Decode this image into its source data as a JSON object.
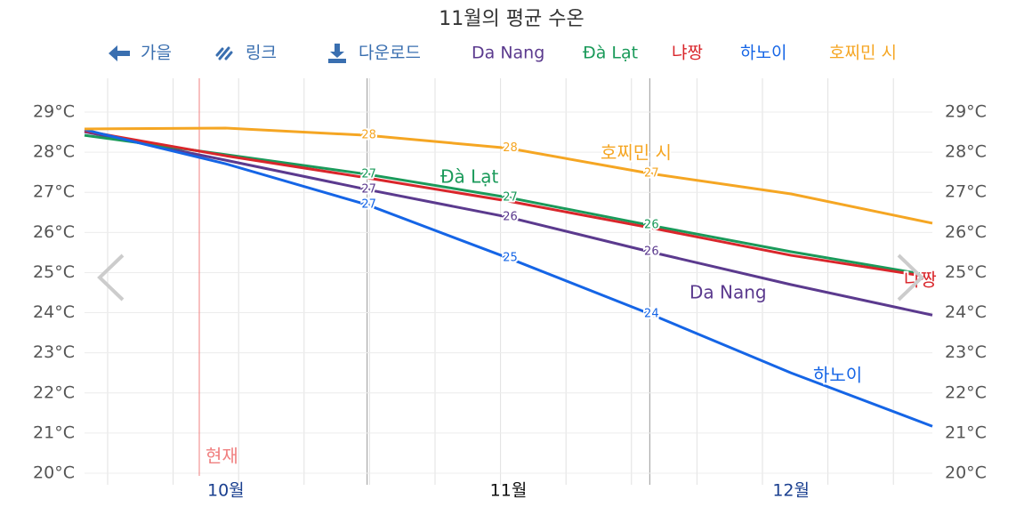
{
  "chart_data": {
    "type": "line",
    "title": "11월의 평균 수온",
    "toolbar": [
      "가을",
      "링크",
      "다운로드"
    ],
    "annotation": "현재",
    "categories": [
      null,
      "10월",
      null,
      "11월",
      null,
      "12월",
      null
    ],
    "series": [
      {
        "name": "Da Nang",
        "color": "#5b3a8e",
        "values": [
          28.51,
          27.8,
          27.07,
          26.38,
          25.52,
          24.7,
          23.94
        ],
        "value_labels": [
          null,
          null,
          "27",
          "26",
          "26",
          null,
          null
        ]
      },
      {
        "name": "Đà Lạt",
        "color": "#1a9a5a",
        "values": [
          28.42,
          27.94,
          27.45,
          26.87,
          26.18,
          25.52,
          24.92
        ],
        "value_labels": [
          null,
          null,
          "27",
          "27",
          "26",
          null,
          null
        ]
      },
      {
        "name": "냐짱",
        "color": "#d9262b",
        "values": [
          28.53,
          27.91,
          27.36,
          26.78,
          26.12,
          25.43,
          24.88
        ]
      },
      {
        "name": "하노이",
        "color": "#1565e6",
        "values": [
          28.56,
          27.71,
          26.69,
          25.36,
          23.97,
          22.5,
          21.17
        ],
        "value_labels": [
          null,
          null,
          "27",
          "25",
          "24",
          null,
          null
        ]
      },
      {
        "name": "호찌민 시",
        "color": "#f5a623",
        "values": [
          28.58,
          28.6,
          28.42,
          28.1,
          27.47,
          26.96,
          26.23
        ],
        "value_labels": [
          null,
          null,
          "28",
          "28",
          "27",
          null,
          null
        ]
      }
    ],
    "ylim": [
      20,
      29
    ],
    "yticks": [
      {
        "value": 20,
        "label": "20°C"
      },
      {
        "value": 21,
        "label": "21°C"
      },
      {
        "value": 22,
        "label": "22°C"
      },
      {
        "value": 23,
        "label": "23°C"
      },
      {
        "value": 24,
        "label": "24°C"
      },
      {
        "value": 25,
        "label": "25°C"
      },
      {
        "value": 26,
        "label": "26°C"
      },
      {
        "value": 27,
        "label": "27°C"
      },
      {
        "value": 28,
        "label": "28°C"
      },
      {
        "value": 29,
        "label": "29°C"
      }
    ],
    "grid": true
  }
}
